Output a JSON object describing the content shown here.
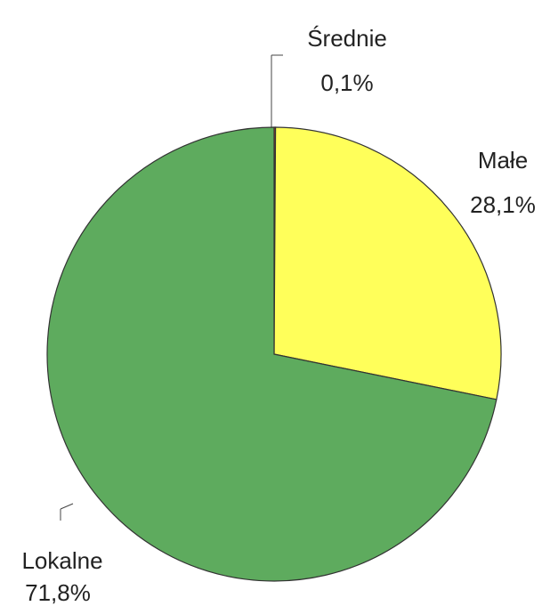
{
  "chart_data": {
    "type": "pie",
    "categories": [
      "Średnie",
      "Małe",
      "Lokalne"
    ],
    "values": [
      0.1,
      28.1,
      71.8
    ],
    "value_labels": [
      "0,1%",
      "28,1%",
      "71,8%"
    ],
    "colors": [
      "#e03a2e",
      "#ffff5a",
      "#5eab5e"
    ]
  }
}
